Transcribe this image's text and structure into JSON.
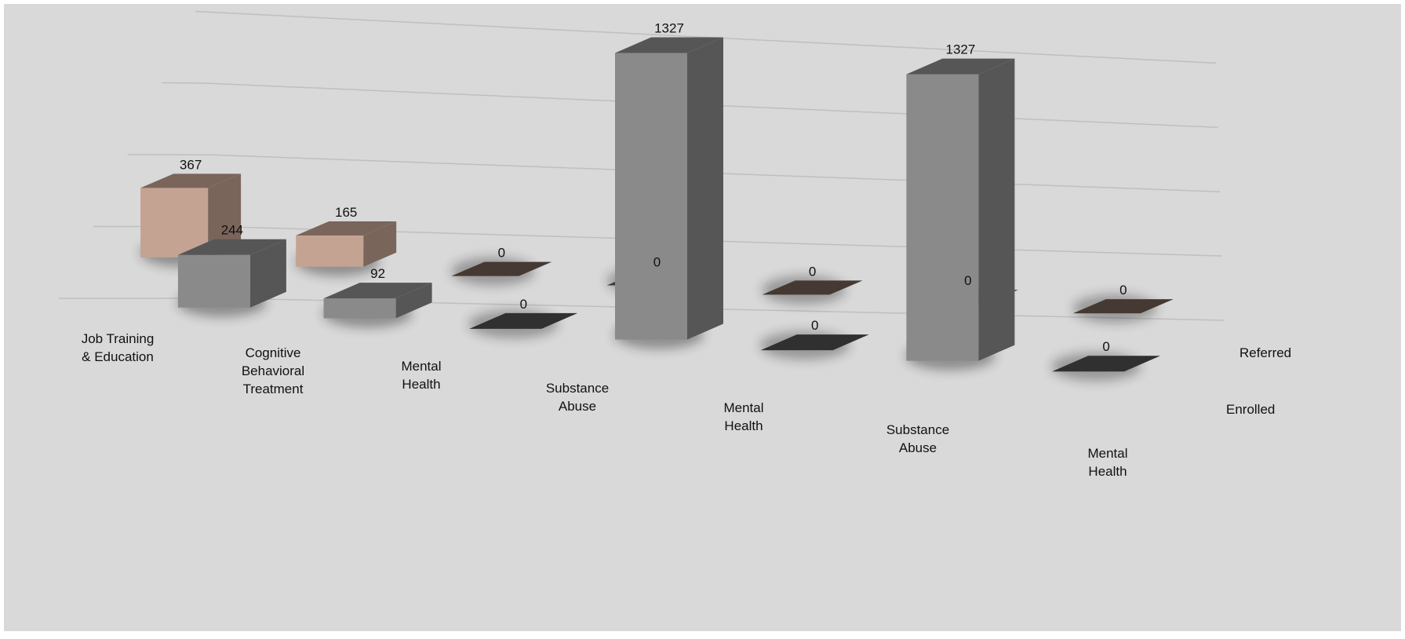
{
  "chart_data": {
    "type": "bar",
    "style": "3d-column",
    "categories": [
      "Job Training & Education",
      "Cognitive Behavioral Treatment",
      "Mental Health",
      "Substance Abuse",
      "Mental Health",
      "Substance Abuse",
      "Mental Health"
    ],
    "series": [
      {
        "name": "Referred",
        "values": [
          367,
          165,
          0,
          0,
          0,
          0,
          0
        ],
        "color": "#c4a393"
      },
      {
        "name": "Enrolled",
        "values": [
          244,
          92,
          0,
          1327,
          0,
          1327,
          0
        ],
        "color": "#8a8a8a"
      }
    ],
    "grid": true,
    "background": "#d9d9d9"
  }
}
